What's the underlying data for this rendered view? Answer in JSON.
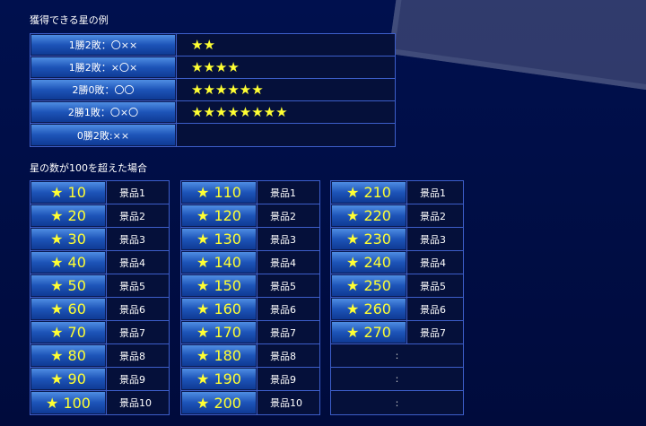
{
  "example": {
    "title": "獲得できる星の例",
    "rows": [
      {
        "label": "1勝2敗：〇××",
        "stars": "★★"
      },
      {
        "label": "1勝2敗：×〇×",
        "stars": "★★★★"
      },
      {
        "label": "2勝0敗：〇〇",
        "stars": "★★★★★★"
      },
      {
        "label": "2勝1敗：〇×〇",
        "stars": "★★★★★★★★"
      },
      {
        "label": "0勝2敗:××"
      }
    ]
  },
  "over100": {
    "title": "星の数が100を超えた場合",
    "columns": [
      [
        {
          "stars": "★ 10",
          "prize": "景品1"
        },
        {
          "stars": "★ 20",
          "prize": "景品2"
        },
        {
          "stars": "★ 30",
          "prize": "景品3"
        },
        {
          "stars": "★ 40",
          "prize": "景品4"
        },
        {
          "stars": "★ 50",
          "prize": "景品5"
        },
        {
          "stars": "★ 60",
          "prize": "景品6"
        },
        {
          "stars": "★ 70",
          "prize": "景品7"
        },
        {
          "stars": "★ 80",
          "prize": "景品8"
        },
        {
          "stars": "★ 90",
          "prize": "景品9"
        },
        {
          "stars": "★ 100",
          "prize": "景品10"
        }
      ],
      [
        {
          "stars": "★ 110",
          "prize": "景品1"
        },
        {
          "stars": "★ 120",
          "prize": "景品2"
        },
        {
          "stars": "★ 130",
          "prize": "景品3"
        },
        {
          "stars": "★ 140",
          "prize": "景品4"
        },
        {
          "stars": "★ 150",
          "prize": "景品5"
        },
        {
          "stars": "★ 160",
          "prize": "景品6"
        },
        {
          "stars": "★ 170",
          "prize": "景品7"
        },
        {
          "stars": "★ 180",
          "prize": "景品8"
        },
        {
          "stars": "★ 190",
          "prize": "景品9"
        },
        {
          "stars": "★ 200",
          "prize": "景品10"
        }
      ],
      [
        {
          "stars": "★ 210",
          "prize": "景品1"
        },
        {
          "stars": "★ 220",
          "prize": "景品2"
        },
        {
          "stars": "★ 230",
          "prize": "景品3"
        },
        {
          "stars": "★ 240",
          "prize": "景品4"
        },
        {
          "stars": "★ 250",
          "prize": "景品5"
        },
        {
          "stars": "★ 260",
          "prize": "景品6"
        },
        {
          "stars": "★ 270",
          "prize": "景品7"
        },
        {
          "text": ":"
        },
        {
          "text": ":"
        },
        {
          "text": ":"
        }
      ]
    ]
  }
}
